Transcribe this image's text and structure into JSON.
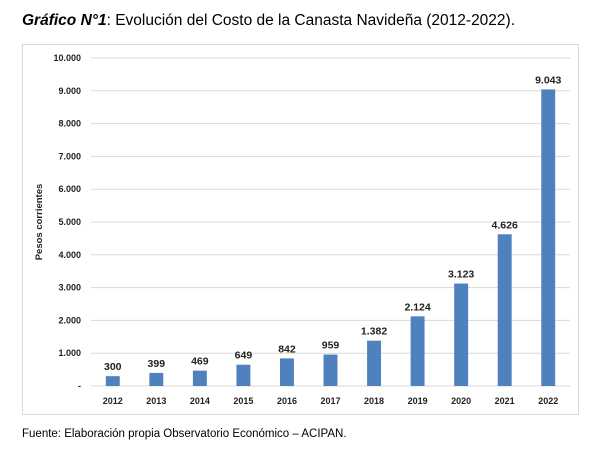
{
  "title": {
    "lead": "Gráfico N°1",
    "rest": ": Evolución del Costo de la Canasta Navideña (2012-2022)."
  },
  "source": "Fuente: Elaboración propia Observatorio Económico – ACIPAN.",
  "chart_data": {
    "type": "bar",
    "title": "",
    "xlabel": "",
    "ylabel": "Pesos corrientes",
    "categories": [
      "2012",
      "2013",
      "2014",
      "2015",
      "2016",
      "2017",
      "2018",
      "2019",
      "2020",
      "2021",
      "2022"
    ],
    "values": [
      300,
      399,
      469,
      649,
      842,
      959,
      1382,
      2124,
      3123,
      4626,
      9043
    ],
    "value_labels": [
      "300",
      "399",
      "469",
      "649",
      "842",
      "959",
      "1.382",
      "2.124",
      "3.123",
      "4.626",
      "9.043"
    ],
    "ylim": [
      0,
      10000
    ],
    "y_ticks": [
      0,
      1000,
      2000,
      3000,
      4000,
      5000,
      6000,
      7000,
      8000,
      9000,
      10000
    ],
    "y_tick_labels": [
      "-",
      "1.000",
      "2.000",
      "3.000",
      "4.000",
      "5.000",
      "6.000",
      "7.000",
      "8.000",
      "9.000",
      "10.000"
    ],
    "grid": true,
    "legend": "none",
    "bar_color": "#4f81bd",
    "grid_color": "#d9d9d9"
  }
}
